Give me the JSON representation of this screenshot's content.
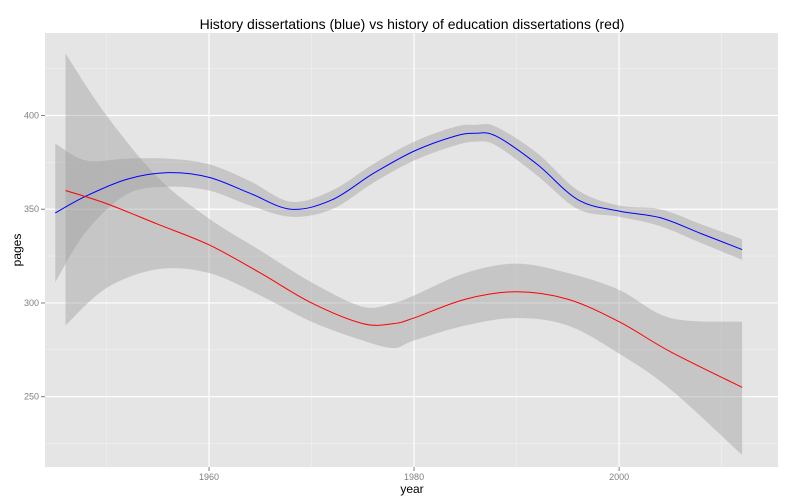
{
  "chart_data": {
    "type": "line",
    "title": "History dissertations (blue) vs history of education dissertations (red)",
    "xlabel": "year",
    "ylabel": "pages",
    "xlim": [
      1944,
      2015.5
    ],
    "ylim": [
      212.5,
      444
    ],
    "x_ticks": [
      1960,
      1980,
      2000
    ],
    "y_ticks": [
      250,
      300,
      350,
      400
    ],
    "grid": true,
    "legend": "none",
    "colors": {
      "panel": "#e5e5e5",
      "grid": "#ffffff",
      "band": "#999999",
      "blue": "#0000ff",
      "red": "#ff0000"
    },
    "series": [
      {
        "color": "#0000ff",
        "x": [
          1945,
          1948,
          1952,
          1956,
          1960,
          1964,
          1968,
          1972,
          1976,
          1980,
          1984,
          1986,
          1988,
          1992,
          1996,
          2000,
          2004,
          2008,
          2012
        ],
        "y": [
          348,
          357,
          366,
          369.5,
          367,
          358.5,
          350,
          355,
          369,
          381,
          389,
          390.5,
          389,
          374,
          355,
          349,
          345.5,
          337,
          328.5
        ],
        "lower": [
          311,
          338,
          358,
          362,
          360,
          352,
          346,
          350,
          364,
          376,
          384,
          386,
          384,
          368,
          350,
          346,
          341,
          332,
          323
        ],
        "upper": [
          385,
          376,
          377,
          377,
          374,
          365,
          354,
          360,
          374,
          386,
          394,
          395,
          394,
          380,
          360,
          352,
          350,
          342,
          334
        ]
      },
      {
        "color": "#ff0000",
        "x": [
          1946,
          1950,
          1955,
          1960,
          1965,
          1970,
          1975,
          1978,
          1980,
          1985,
          1990,
          1995,
          2000,
          2005,
          2012
        ],
        "y": [
          360,
          353,
          342,
          331,
          316,
          300,
          289,
          289,
          292,
          302,
          306,
          302,
          290,
          274,
          255
        ],
        "lower": [
          288,
          308,
          318,
          316,
          304,
          290,
          280,
          276,
          280,
          288,
          292,
          288,
          273,
          254,
          219
        ],
        "upper": [
          433,
          400,
          367,
          345,
          328,
          311,
          298,
          300,
          304,
          316,
          321,
          316,
          307,
          292,
          290
        ]
      }
    ]
  }
}
